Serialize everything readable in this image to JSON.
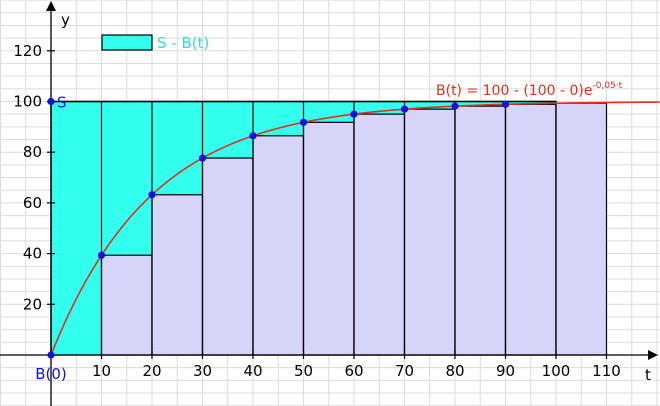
{
  "chart_data": {
    "type": "bar",
    "x_step": 10,
    "x": [
      0,
      10,
      20,
      30,
      40,
      50,
      60,
      70,
      80,
      90,
      100
    ],
    "values": [
      0,
      39.35,
      63.21,
      77.69,
      86.47,
      91.79,
      95.02,
      96.98,
      98.17,
      98.89,
      99.33
    ],
    "S": 100,
    "function": {
      "label_main": "B(t) = 100 - (100 - 0)e",
      "label_exp": "-0,05·t",
      "rate": 0.05,
      "limit": 100,
      "start": 0
    },
    "legend": {
      "label": "S - B(t)"
    },
    "s_label": "S",
    "b0_label": "B(0)",
    "xlabel": "t",
    "ylabel": "y",
    "xlim": [
      -10,
      120
    ],
    "ylim": [
      -20,
      135
    ],
    "x_ticks": [
      10,
      20,
      30,
      40,
      50,
      60,
      70,
      80,
      90,
      100,
      110
    ],
    "x_tick_labels": [
      "10",
      "20",
      "30",
      "40",
      "50",
      "60",
      "70",
      "80",
      "90",
      "100",
      "110"
    ],
    "y_ticks": [
      20,
      40,
      60,
      80,
      100,
      120
    ],
    "y_tick_labels": [
      "20",
      "40",
      "60",
      "80",
      "100",
      "120"
    ],
    "grid": true,
    "colors": {
      "cyan_fill": "#33ffee",
      "lavender_fill": "#d6d4f8",
      "curve": "#e03020",
      "points": "#1010e0",
      "legend_text": "#33dddd",
      "grid": "#dcdcdc"
    }
  }
}
